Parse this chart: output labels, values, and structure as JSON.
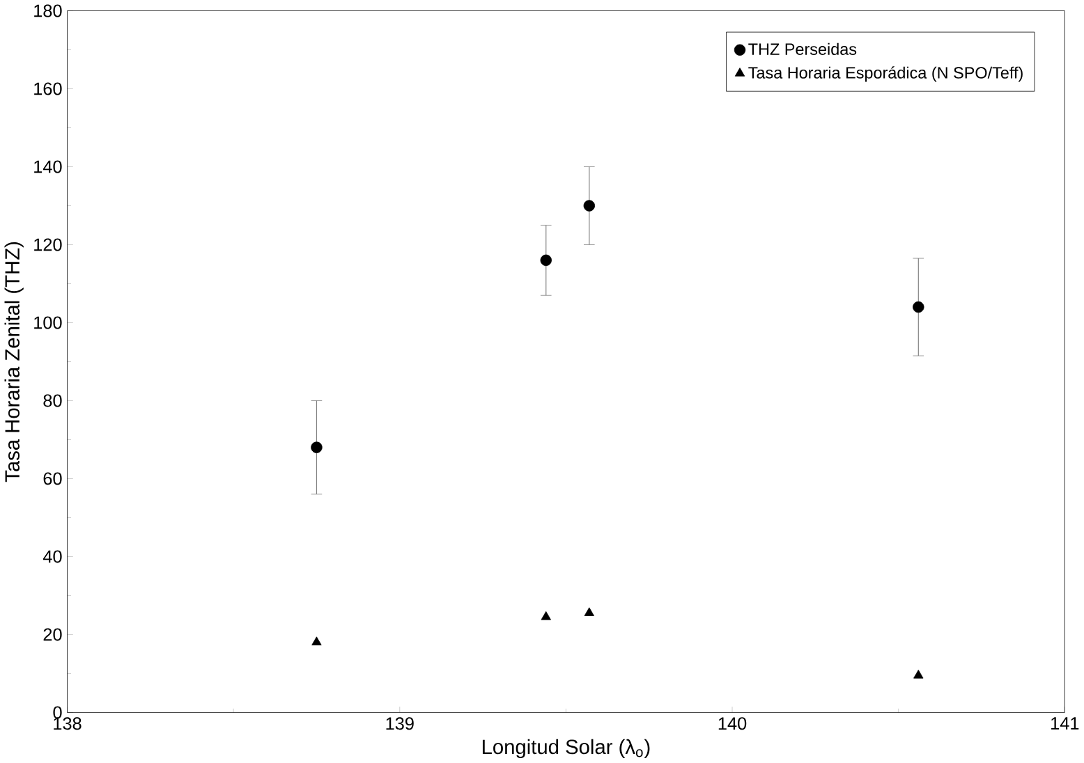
{
  "chart_data": {
    "type": "scatter",
    "xlabel": "Longitud Solar (λ$_{o}$)",
    "ylabel": "Tasa Horaria Zenital (THZ)",
    "xlim": [
      138,
      141
    ],
    "ylim": [
      0,
      180
    ],
    "xticks": [
      138,
      139,
      140,
      141
    ],
    "yticks": [
      0,
      20,
      40,
      60,
      80,
      100,
      120,
      140,
      160,
      180
    ],
    "grid": false,
    "legend": "top right",
    "series": [
      {
        "name": "THZ Perseidas",
        "color": "#000000",
        "marker": "circle",
        "x": [
          138.75,
          139.44,
          139.57,
          140.56
        ],
        "values": [
          68,
          116,
          130,
          104
        ],
        "errors": [
          12,
          9,
          10,
          12.5
        ]
      },
      {
        "name": "Tasa Horaria Esporádica (N SPO/Teff)",
        "color": "#000000",
        "marker": "triangle",
        "x": [
          138.75,
          139.44,
          139.57,
          140.56
        ],
        "values": [
          18,
          24.5,
          25.5,
          9.5
        ]
      }
    ]
  }
}
